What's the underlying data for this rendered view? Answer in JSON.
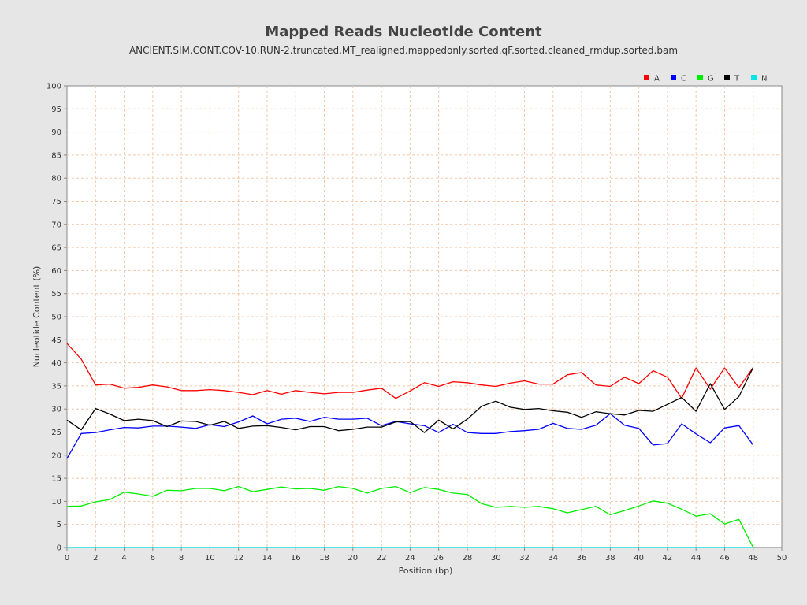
{
  "chart_data": {
    "type": "line",
    "title": "Mapped Reads Nucleotide Content",
    "subtitle": "ANCIENT.SIM.CONT.COV-10.RUN-2.truncated.MT_realigned.mappedonly.sorted.qF.sorted.cleaned_rmdup.sorted.bam",
    "xlabel": "Position (bp)",
    "ylabel": "Nucleotide Content (%)",
    "xlim": [
      0,
      50
    ],
    "ylim": [
      0,
      100
    ],
    "x_ticks": [
      0,
      2,
      4,
      6,
      8,
      10,
      12,
      14,
      16,
      18,
      20,
      22,
      24,
      26,
      28,
      30,
      32,
      34,
      36,
      38,
      40,
      42,
      44,
      46,
      48,
      50
    ],
    "y_ticks": [
      0,
      5,
      10,
      15,
      20,
      25,
      30,
      35,
      40,
      45,
      50,
      55,
      60,
      65,
      70,
      75,
      80,
      85,
      90,
      95,
      100
    ],
    "grid": true,
    "legend_position": "top-right",
    "x": [
      0,
      1,
      2,
      3,
      4,
      5,
      6,
      7,
      8,
      9,
      10,
      11,
      12,
      13,
      14,
      15,
      16,
      17,
      18,
      19,
      20,
      21,
      22,
      23,
      24,
      25,
      26,
      27,
      28,
      29,
      30,
      31,
      32,
      33,
      34,
      35,
      36,
      37,
      38,
      39,
      40,
      41,
      42,
      43,
      44,
      45,
      46,
      47,
      48
    ],
    "series": [
      {
        "name": "A",
        "color": "#ff0000",
        "values": [
          44.2,
          40.8,
          35.2,
          35.4,
          34.5,
          34.7,
          35.2,
          34.8,
          34.0,
          34.0,
          34.2,
          34.0,
          33.6,
          33.1,
          34.0,
          33.2,
          34.0,
          33.6,
          33.3,
          33.6,
          33.6,
          34.1,
          34.5,
          32.3,
          33.9,
          35.7,
          34.9,
          35.9,
          35.7,
          35.2,
          34.9,
          35.6,
          36.1,
          35.4,
          35.4,
          37.4,
          37.9,
          35.2,
          34.9,
          36.9,
          35.5,
          38.3,
          36.9,
          32.3,
          38.9,
          34.3,
          38.9,
          34.6,
          39.0
        ]
      },
      {
        "name": "C",
        "color": "#0000ff",
        "values": [
          19.3,
          24.7,
          24.9,
          25.5,
          26.0,
          25.9,
          26.3,
          26.3,
          26.1,
          25.8,
          26.6,
          26.2,
          27.2,
          28.5,
          26.8,
          27.8,
          28.0,
          27.3,
          28.2,
          27.8,
          27.8,
          28.0,
          26.4,
          27.3,
          26.8,
          26.4,
          24.9,
          26.7,
          24.9,
          24.7,
          24.7,
          25.1,
          25.3,
          25.6,
          26.9,
          25.8,
          25.6,
          26.5,
          29.0,
          26.5,
          25.8,
          22.2,
          22.5,
          26.8,
          24.6,
          22.7,
          25.9,
          26.4,
          22.2
        ]
      },
      {
        "name": "G",
        "color": "#00ee00",
        "values": [
          8.9,
          9.0,
          9.9,
          10.4,
          12.0,
          11.6,
          11.1,
          12.4,
          12.3,
          12.8,
          12.8,
          12.3,
          13.2,
          12.1,
          12.6,
          13.1,
          12.7,
          12.8,
          12.4,
          13.2,
          12.8,
          11.8,
          12.8,
          13.2,
          11.9,
          13.0,
          12.6,
          11.8,
          11.5,
          9.5,
          8.7,
          8.9,
          8.7,
          8.9,
          8.4,
          7.5,
          8.2,
          8.9,
          7.1,
          8.0,
          9.0,
          10.1,
          9.6,
          8.3,
          6.8,
          7.3,
          5.1,
          6.1,
          0.0
        ]
      },
      {
        "name": "T",
        "color": "#000000",
        "values": [
          27.6,
          25.5,
          30.1,
          28.9,
          27.5,
          27.8,
          27.5,
          26.2,
          27.4,
          27.3,
          26.5,
          27.3,
          25.8,
          26.3,
          26.4,
          26.0,
          25.5,
          26.2,
          26.2,
          25.3,
          25.6,
          26.1,
          26.1,
          27.2,
          27.3,
          24.9,
          27.6,
          25.7,
          27.8,
          30.6,
          31.7,
          30.4,
          29.9,
          30.1,
          29.6,
          29.3,
          28.2,
          29.4,
          29.0,
          28.7,
          29.7,
          29.5,
          31.0,
          32.5,
          29.5,
          35.5,
          29.9,
          32.7,
          39.0
        ]
      },
      {
        "name": "N",
        "color": "#00e6e6",
        "values": [
          0,
          0,
          0,
          0,
          0,
          0,
          0,
          0,
          0,
          0,
          0,
          0,
          0,
          0,
          0,
          0,
          0,
          0,
          0,
          0,
          0,
          0,
          0,
          0,
          0,
          0,
          0,
          0,
          0,
          0,
          0,
          0,
          0,
          0,
          0,
          0,
          0,
          0,
          0,
          0,
          0,
          0,
          0,
          0,
          0,
          0,
          0,
          0,
          0
        ]
      }
    ]
  }
}
